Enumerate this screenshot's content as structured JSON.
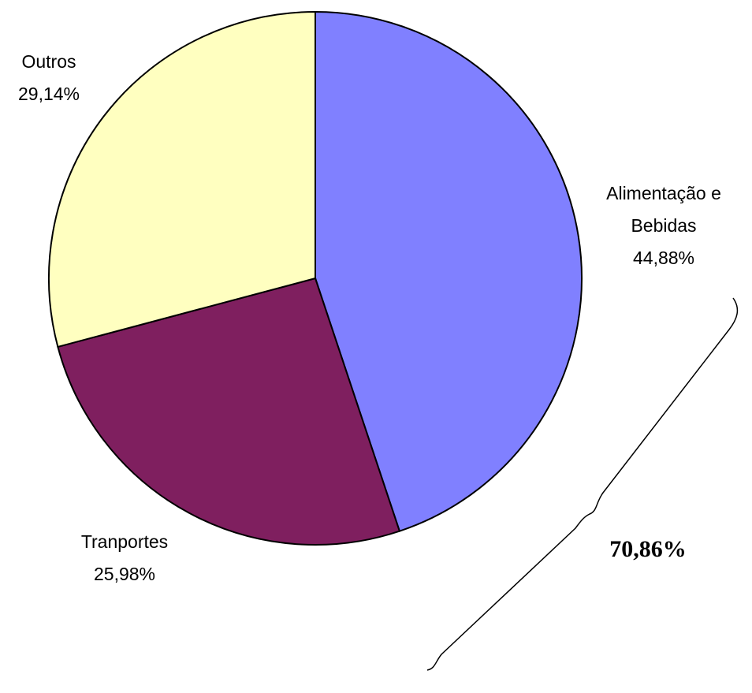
{
  "chart_data": {
    "type": "pie",
    "categories": [
      "Alimentação e Bebidas",
      "Tranportes",
      "Outros"
    ],
    "values": [
      44.88,
      25.98,
      29.14
    ],
    "value_labels": [
      "44,88%",
      "25,98%",
      "29,14%"
    ],
    "colors": [
      "#8080ff",
      "#7f1f5f",
      "#ffffc0"
    ],
    "annotation": "70,86%"
  }
}
